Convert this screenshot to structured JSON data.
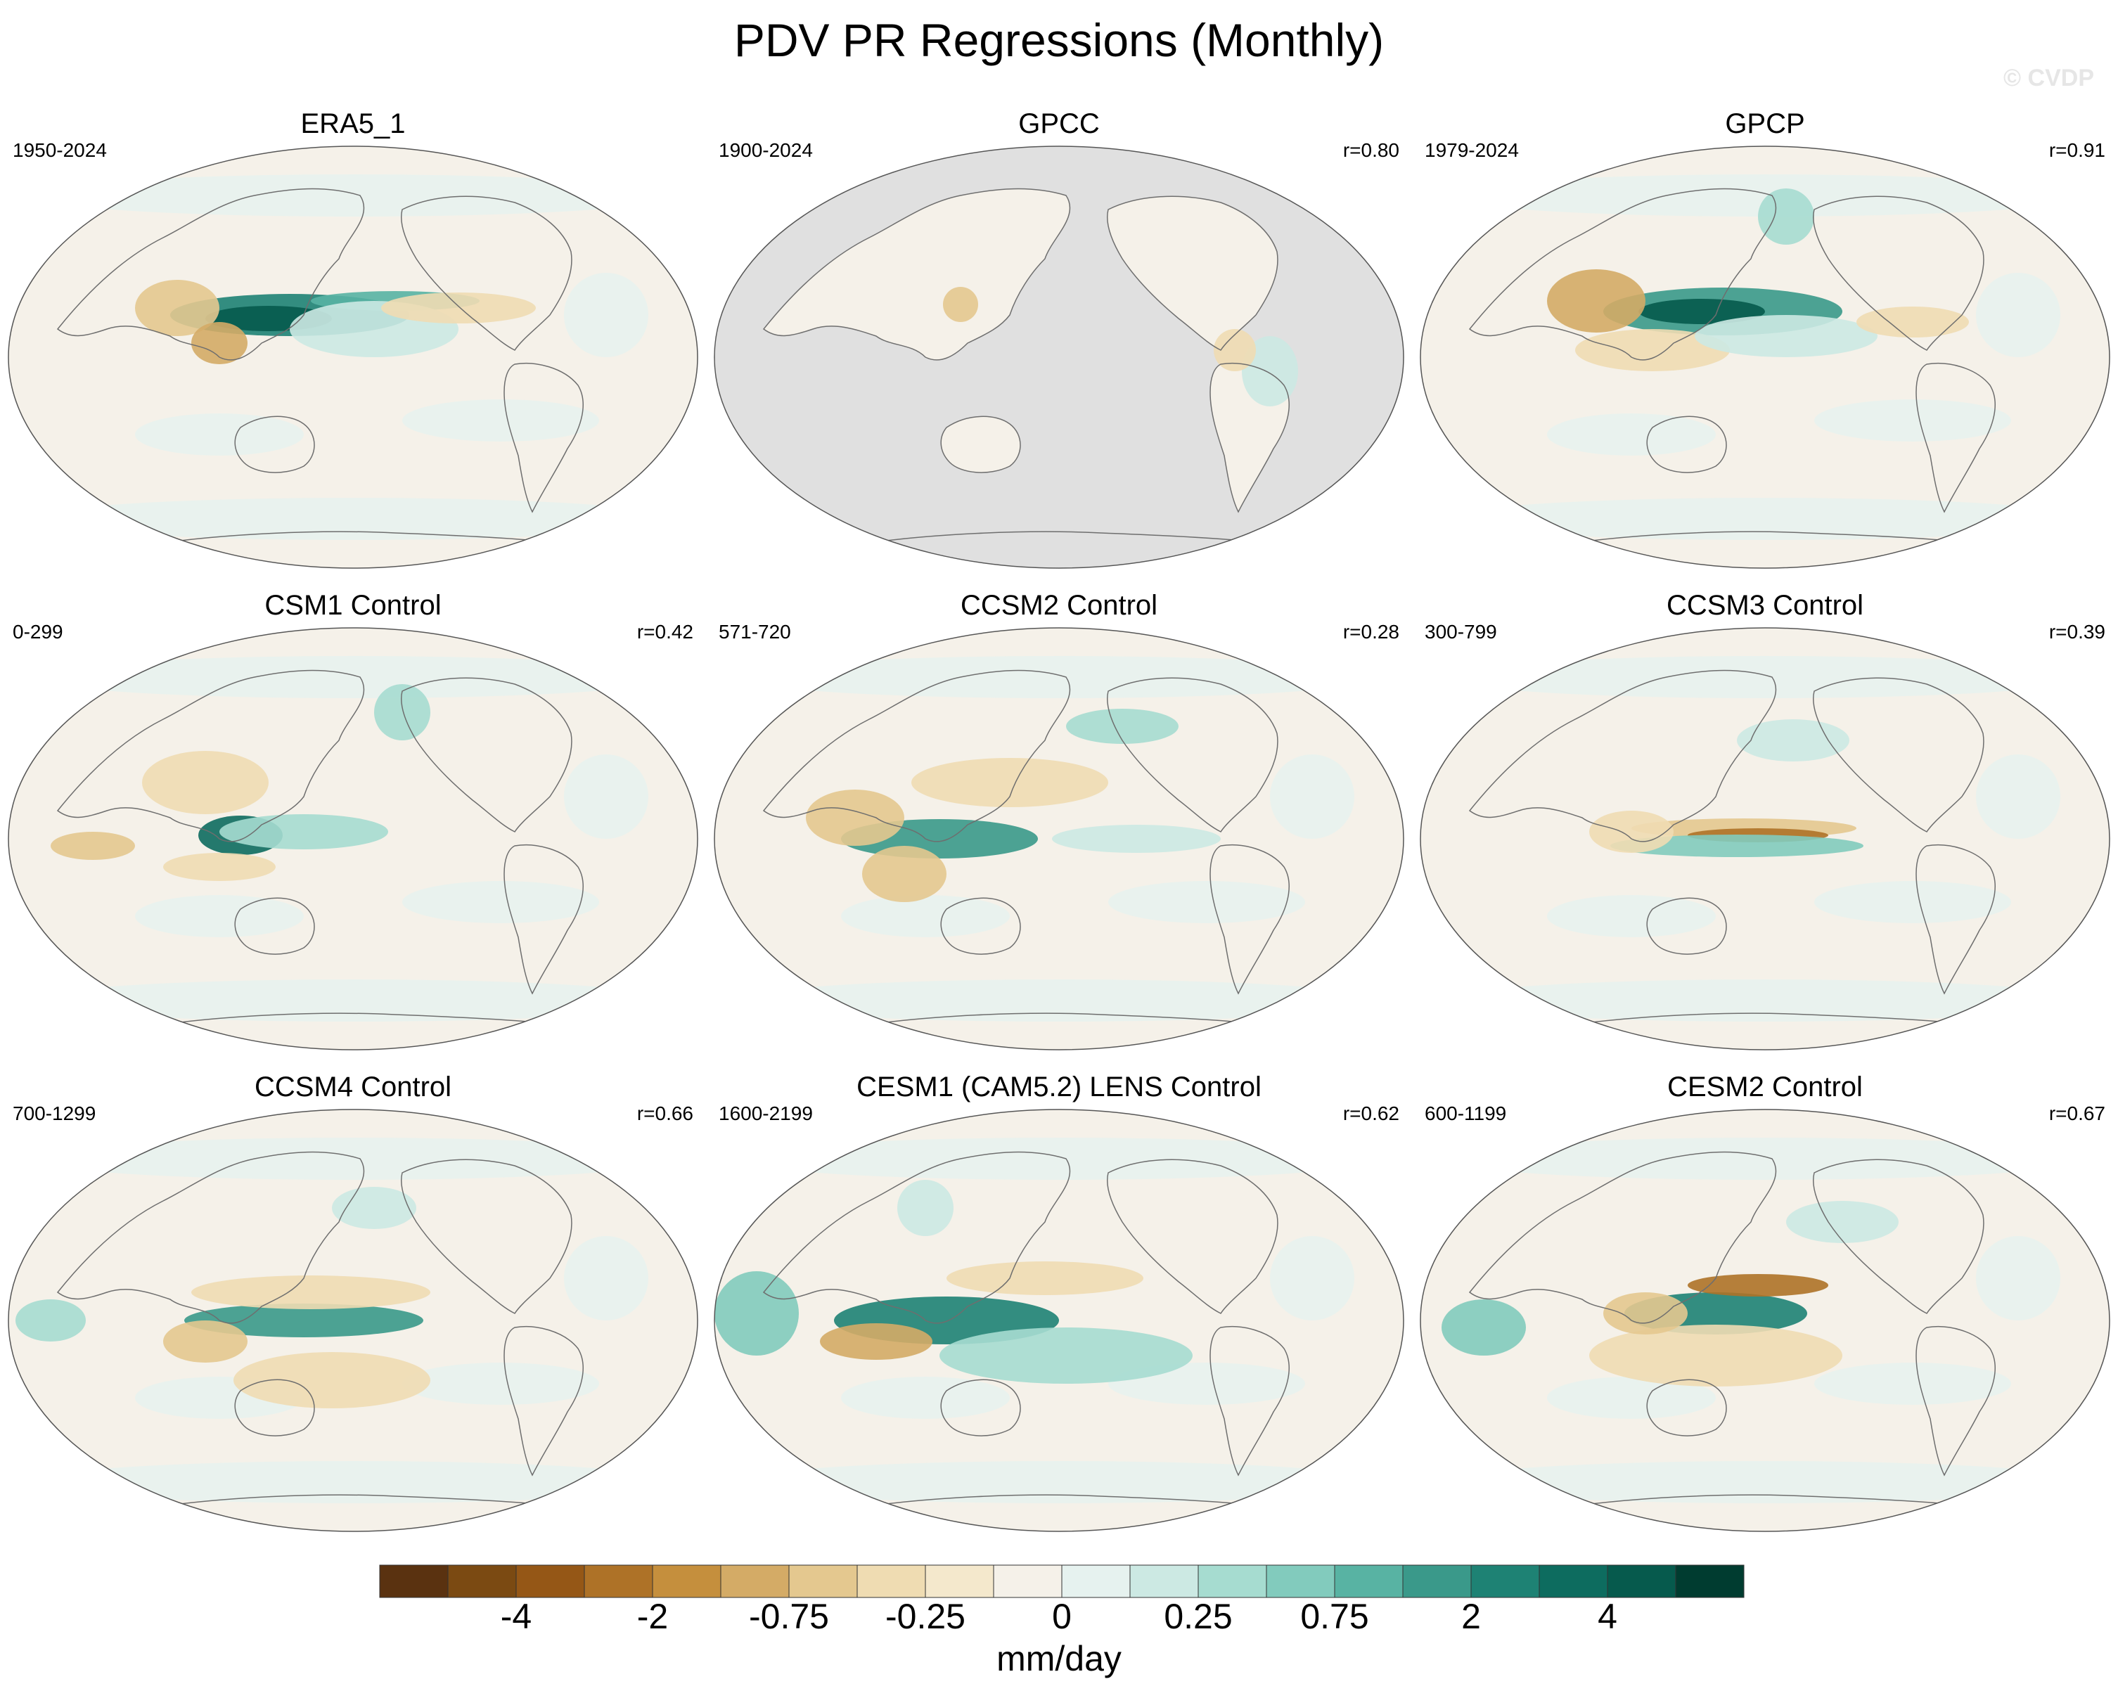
{
  "title": "PDV PR Regressions (Monthly)",
  "watermark": "© CVDP",
  "panels": [
    {
      "name": "ERA5_1",
      "years": "1950-2024",
      "r": "",
      "masked": false
    },
    {
      "name": "GPCC",
      "years": "1900-2024",
      "r": "r=0.80",
      "masked": true
    },
    {
      "name": "GPCP",
      "years": "1979-2024",
      "r": "r=0.91",
      "masked": false
    },
    {
      "name": "CSM1 Control",
      "years": "0-299",
      "r": "r=0.42",
      "masked": false
    },
    {
      "name": "CCSM2 Control",
      "years": "571-720",
      "r": "r=0.28",
      "masked": false
    },
    {
      "name": "CCSM3 Control",
      "years": "300-799",
      "r": "r=0.39",
      "masked": false
    },
    {
      "name": "CCSM4 Control",
      "years": "700-1299",
      "r": "r=0.66",
      "masked": false
    },
    {
      "name": "CESM1 (CAM5.2) LENS Control",
      "years": "1600-2199",
      "r": "r=0.62",
      "masked": false
    },
    {
      "name": "CESM2 Control",
      "years": "600-1199",
      "r": "r=0.67",
      "masked": false
    }
  ],
  "colorbar": {
    "units": "mm/day",
    "tick_labels": [
      "-4",
      "-2",
      "-0.75",
      "-0.25",
      "0",
      "0.25",
      "0.75",
      "2",
      "4"
    ],
    "colors": [
      "#5a3210",
      "#7b4a12",
      "#955716",
      "#ae7227",
      "#c58f3d",
      "#d4ab66",
      "#e4c88f",
      "#efdcb2",
      "#f4e8cc",
      "#f5f1e9",
      "#e6f2ef",
      "#cce9e3",
      "#a6dcd0",
      "#82cbbd",
      "#58b3a3",
      "#3a998a",
      "#1e8274",
      "#0d6c5f",
      "#065a4d",
      "#003c30"
    ]
  },
  "ocean_color": "#dde0df",
  "land_mask_color": "#e0e0e0"
}
